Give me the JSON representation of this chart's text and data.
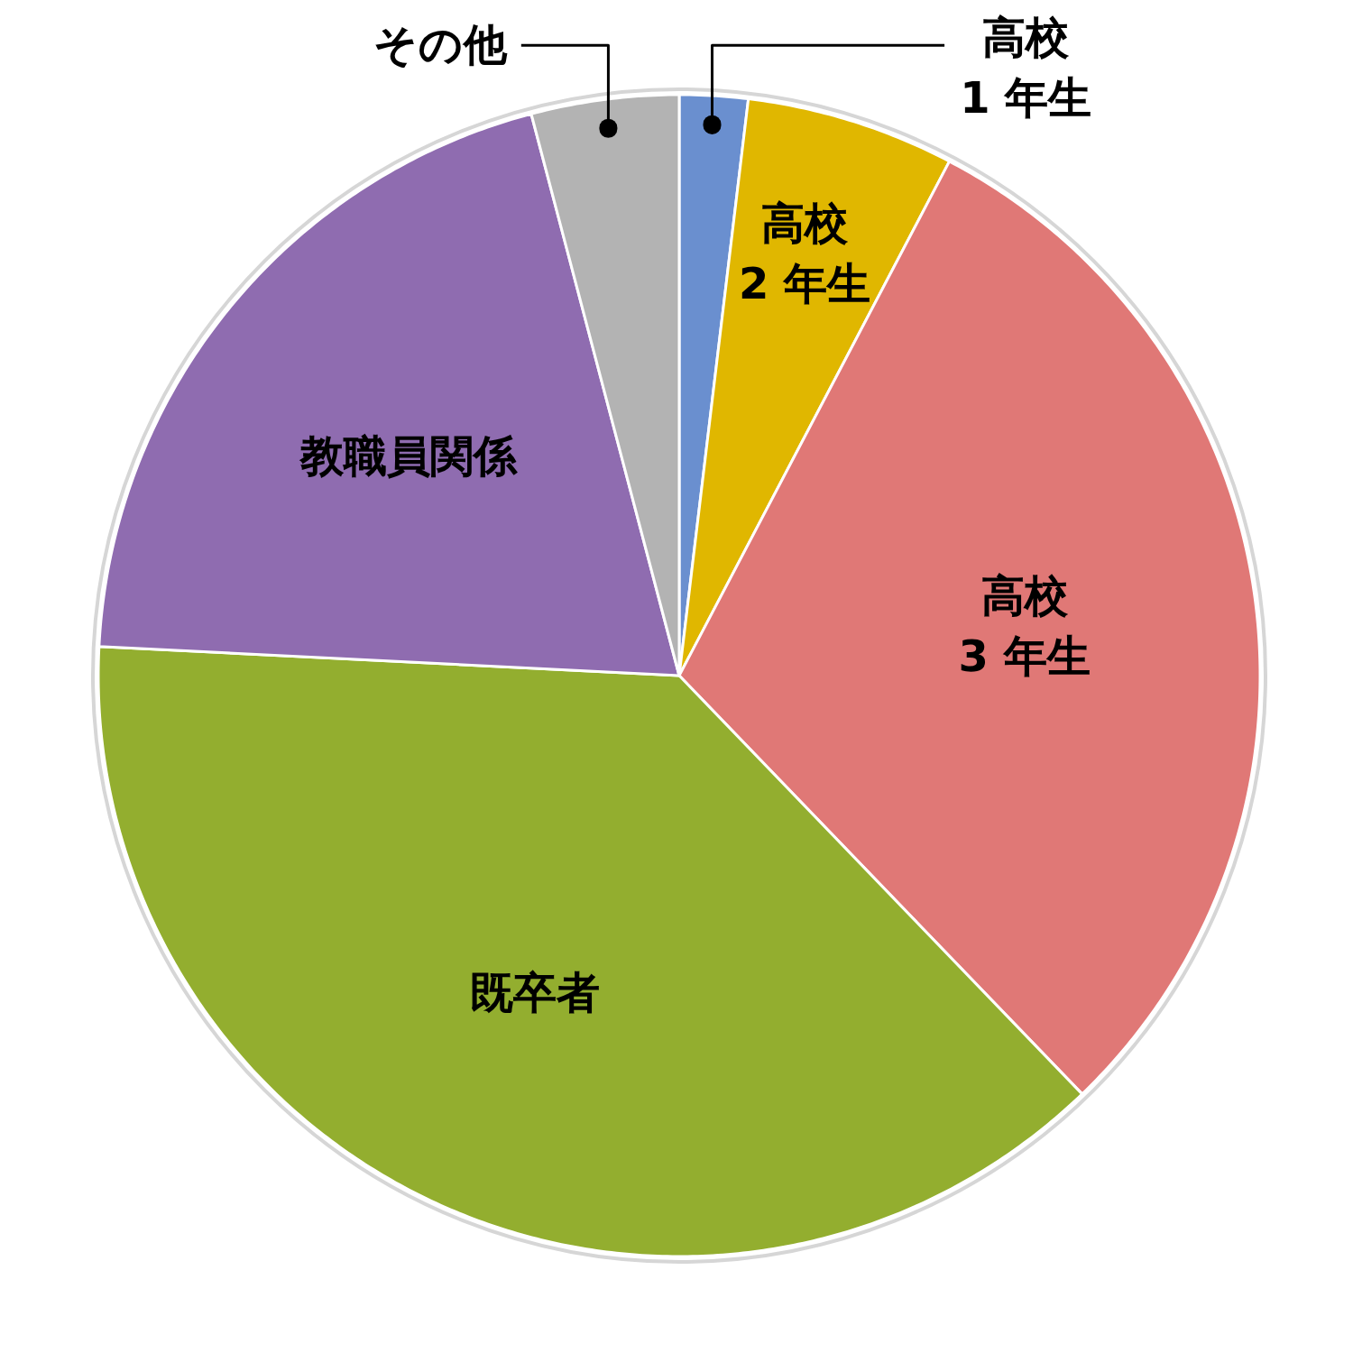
{
  "chart_data": {
    "type": "pie",
    "categories": [
      "高校\n1 年生",
      "高校\n2 年生",
      "高校\n3 年生",
      "既卒者",
      "教職員関係",
      "その他"
    ],
    "values": [
      1.9,
      5.8,
      30.1,
      38.0,
      20.1,
      4.1
    ],
    "colors": [
      "#6a8fcf",
      "#e0b700",
      "#e07876",
      "#93ae2f",
      "#8f6cb0",
      "#b3b3b3"
    ]
  }
}
